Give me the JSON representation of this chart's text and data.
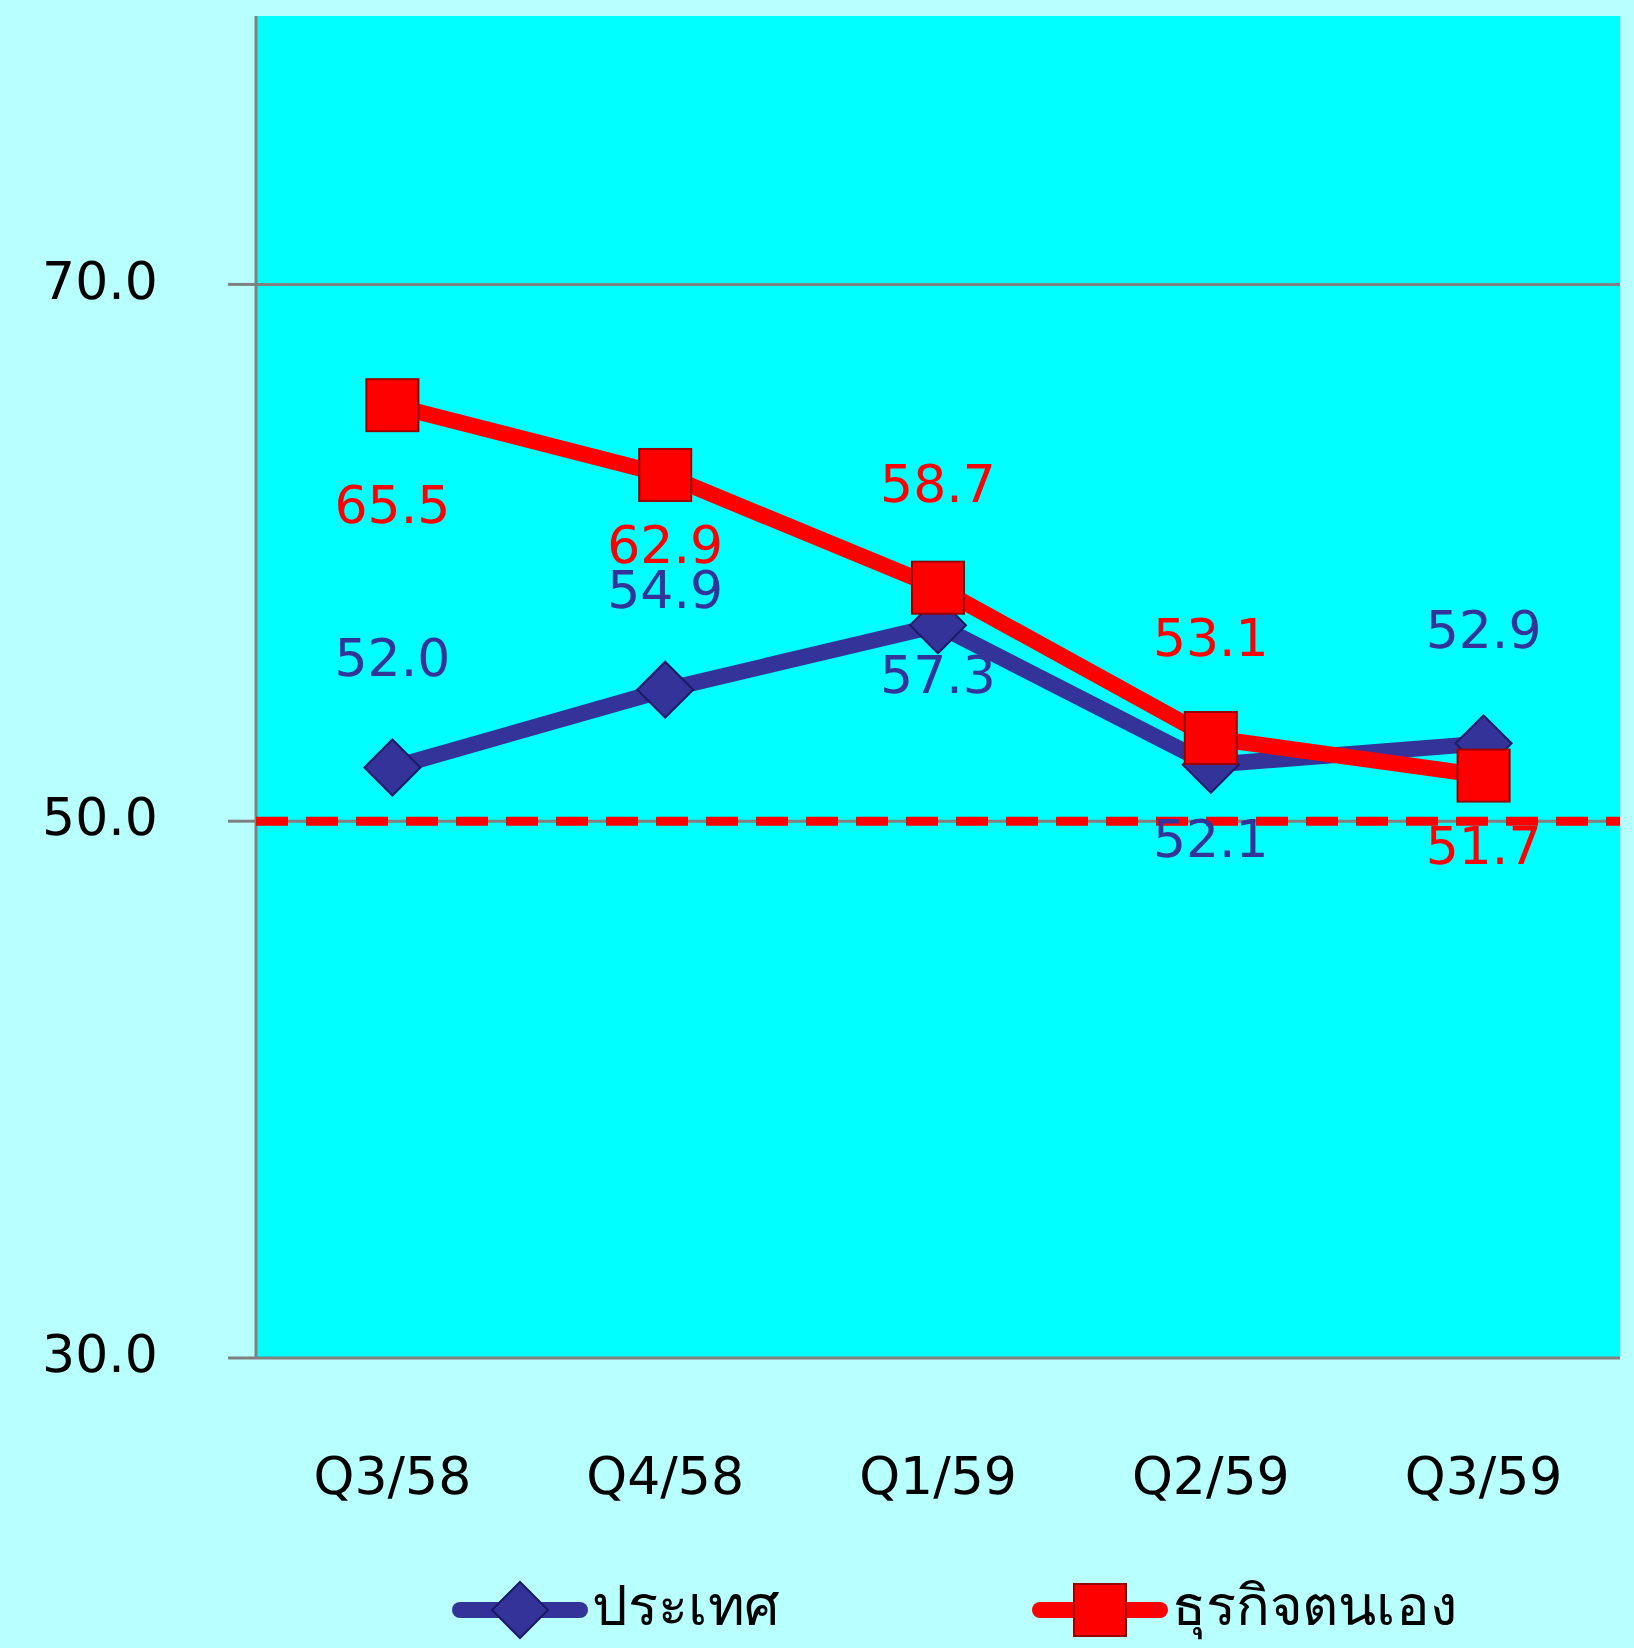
{
  "chart_data": {
    "type": "line",
    "categories": [
      "Q3/58",
      "Q4/58",
      "Q1/59",
      "Q2/59",
      "Q3/59"
    ],
    "series": [
      {
        "name": "ประเทศ",
        "color": "#333399",
        "marker": "diamond",
        "values": [
          52.0,
          54.9,
          57.3,
          52.1,
          52.9
        ],
        "value_labels": [
          "52.0",
          "54.9",
          "57.3",
          "52.1",
          "52.9"
        ]
      },
      {
        "name": "ธุรกิจตนเอง",
        "color": "#ff0000",
        "marker": "square",
        "values": [
          65.5,
          62.9,
          58.7,
          53.1,
          51.7
        ],
        "value_labels": [
          "65.5",
          "62.9",
          "58.7",
          "53.1",
          "51.7"
        ]
      }
    ],
    "ylim": [
      30,
      80
    ],
    "yticks": [
      {
        "value": 30,
        "label": "30.0"
      },
      {
        "value": 50,
        "label": "50.0"
      },
      {
        "value": 70,
        "label": "70.0"
      }
    ],
    "grid": "y",
    "ref_lines": [
      {
        "axis": "y",
        "value": 50,
        "color": "#ff0000",
        "line_style": "dashed"
      }
    ],
    "legend": "bottom"
  }
}
